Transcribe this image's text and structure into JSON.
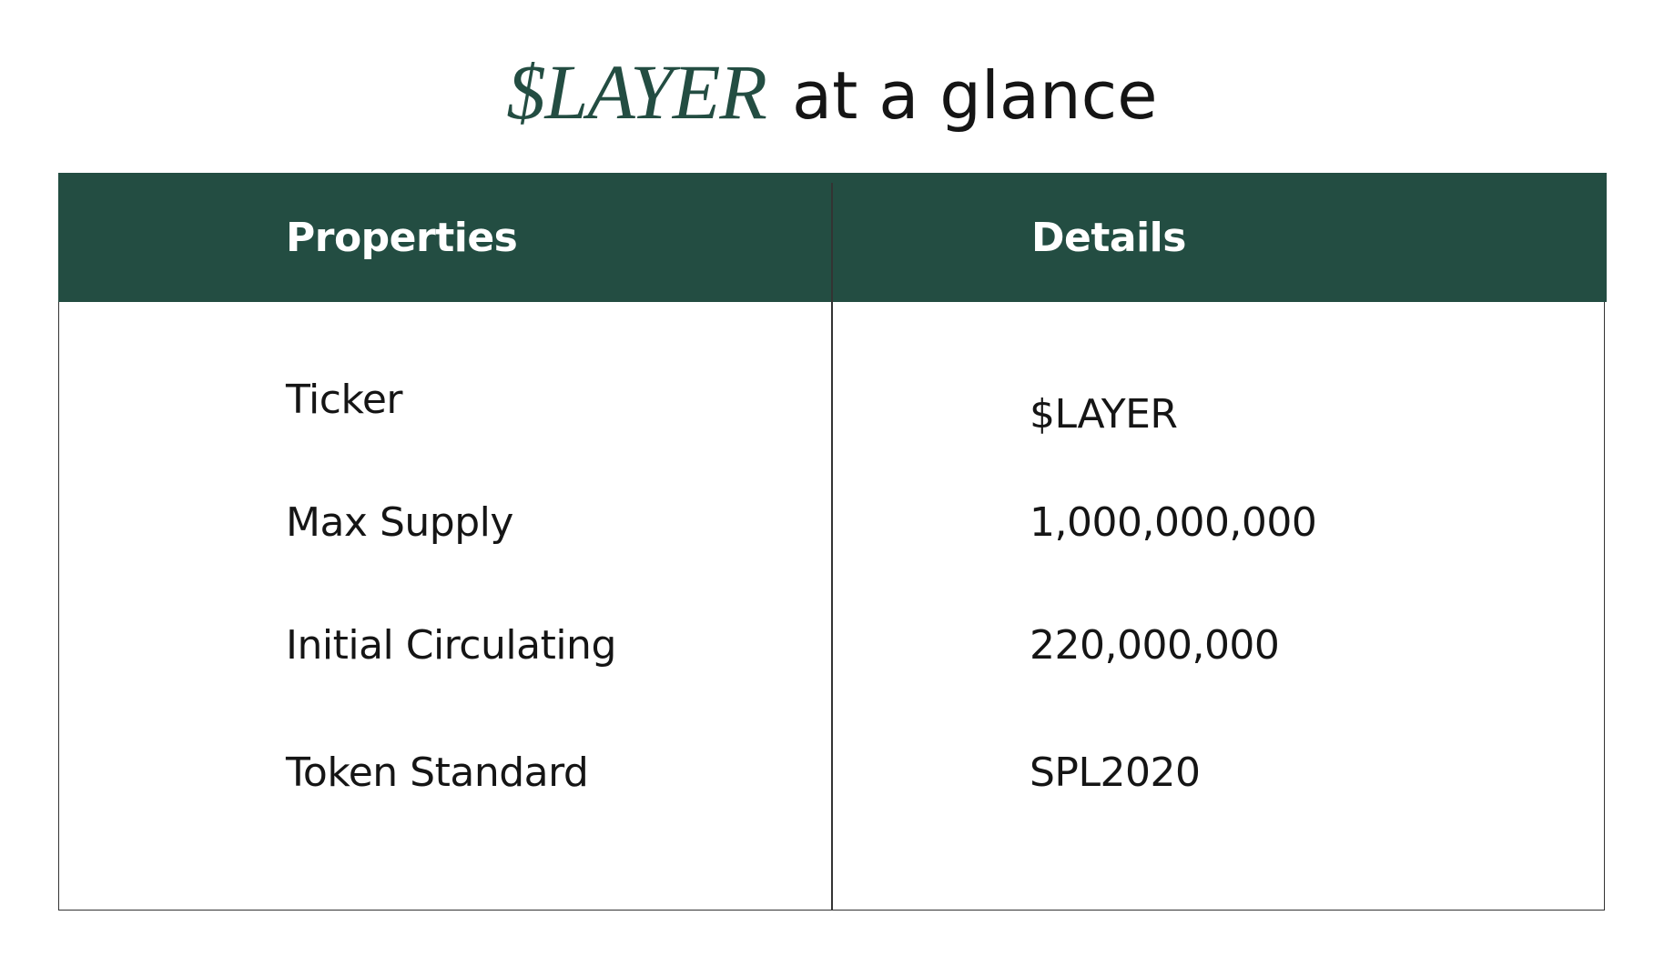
{
  "colors": {
    "accent": "#234d42",
    "border": "#333333",
    "text": "#151515",
    "header_text": "#ffffff"
  },
  "title": {
    "brand": "$LAYER",
    "rest": "at a glance"
  },
  "table": {
    "headers": {
      "properties": "Properties",
      "details": "Details"
    },
    "rows": [
      {
        "property": "Ticker",
        "detail": "$LAYER"
      },
      {
        "property": "Max Supply",
        "detail": "1,000,000,000"
      },
      {
        "property": "Initial Circulating",
        "detail": "220,000,000"
      },
      {
        "property": "Token Standard",
        "detail": "SPL2020"
      }
    ]
  }
}
